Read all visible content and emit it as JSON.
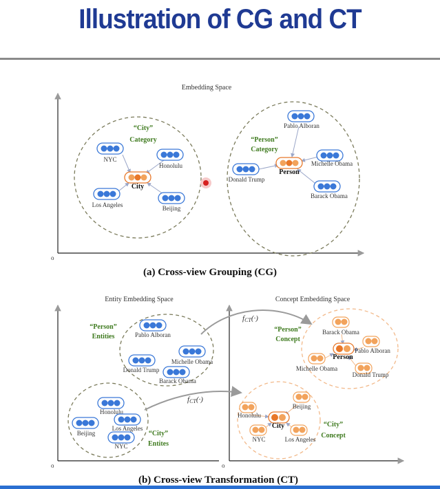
{
  "title": "Illustration of CG and CT",
  "cg": {
    "space_label": "Embedding Space",
    "origin": "o",
    "caption": "(a) Cross-view Grouping (CG)",
    "city_category": [
      "“City”",
      "Category"
    ],
    "person_category": [
      "“Person”",
      "Category"
    ],
    "city_node": "City",
    "person_node": "Person",
    "city_entities": [
      "NYC",
      "Honolulu",
      "Los Angeles",
      "Beijing"
    ],
    "person_entities": [
      "Pablo Alboran",
      "Michelle Obama",
      "Donald Trump",
      "Barack Obama"
    ]
  },
  "ct": {
    "entity_space_label": "Entity Embedding Space",
    "concept_space_label": "Concept Embedding Space",
    "origin_left": "o",
    "origin_right": "o",
    "caption": "(b) Cross-view Transformation (CT)",
    "fct": "f",
    "fct_sub": "CT",
    "fct_arg": "(·)",
    "person_entities_label": [
      "“Person”",
      "Entities"
    ],
    "city_entities_label": [
      "“City”",
      "Entites"
    ],
    "person_concept_label": [
      "“Person”",
      "Concept"
    ],
    "city_concept_label": [
      "“City”",
      "Concept"
    ],
    "person_entities": [
      "Pablo Alboran",
      "Michelle Obama",
      "Donald Trump",
      "Barack Obama"
    ],
    "city_entities": [
      "Honolulu",
      "Beijing",
      "Los Angeles",
      "NYC"
    ],
    "person_concepts": [
      "Barack Obama",
      "Pablo Alboran",
      "Michelle Obama",
      "Donald Trump"
    ],
    "person_node": "Person",
    "city_concepts": [
      "Honolulu",
      "Beijing",
      "NYC",
      "Los Angeles"
    ],
    "city_node": "City"
  },
  "colors": {
    "title": "#1f3a93",
    "entity": "#3a78d8",
    "concept": "#f2a35c",
    "concept_center": "#e8782a",
    "label_green": "#3e7a1e"
  }
}
